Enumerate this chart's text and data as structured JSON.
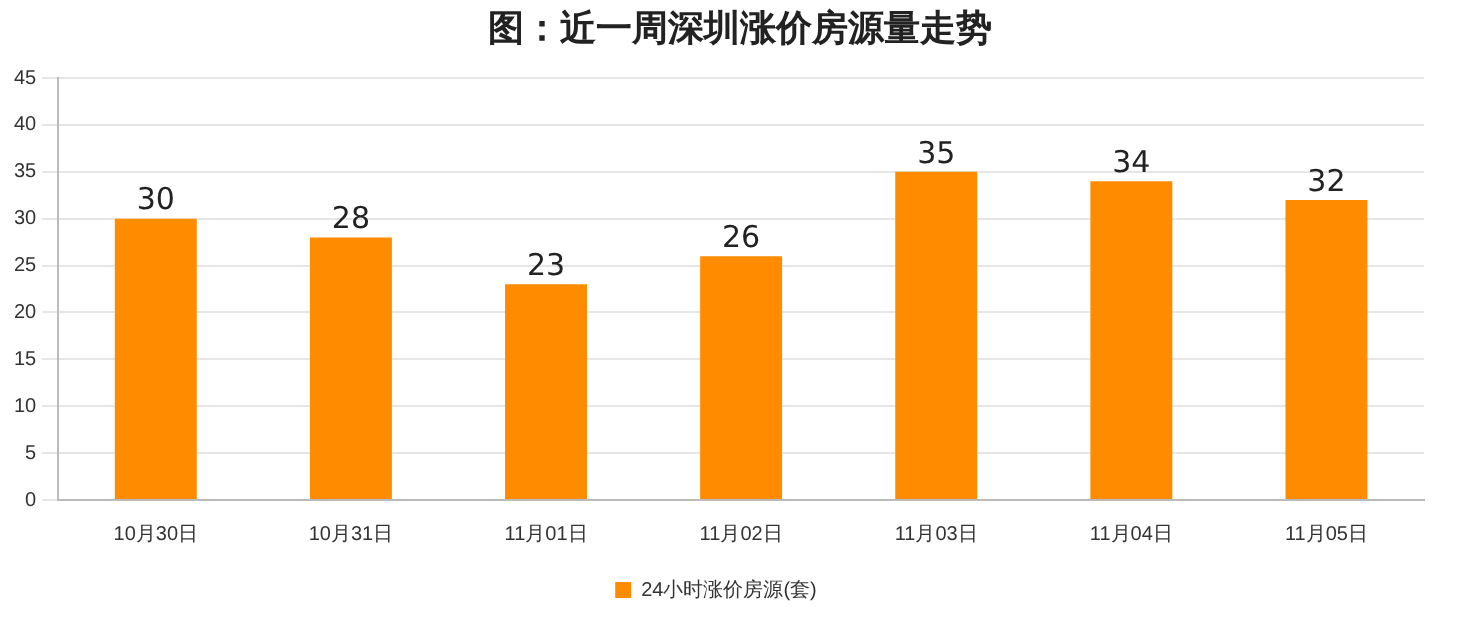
{
  "chart_data": {
    "type": "bar",
    "title": "图：近一周深圳涨价房源量走势",
    "categories": [
      "10月30日",
      "10月31日",
      "11月01日",
      "11月02日",
      "11月03日",
      "11月04日",
      "11月05日"
    ],
    "series": [
      {
        "name": "24小时涨价房源(套)",
        "color": "#ff8c00",
        "values": [
          30,
          28,
          23,
          26,
          35,
          34,
          32
        ]
      }
    ],
    "ylim": [
      0,
      45
    ],
    "yticks": [
      0,
      5,
      10,
      15,
      20,
      25,
      30,
      35,
      40,
      45
    ],
    "grid": "y",
    "legend": "bottom",
    "data_labels": true
  }
}
